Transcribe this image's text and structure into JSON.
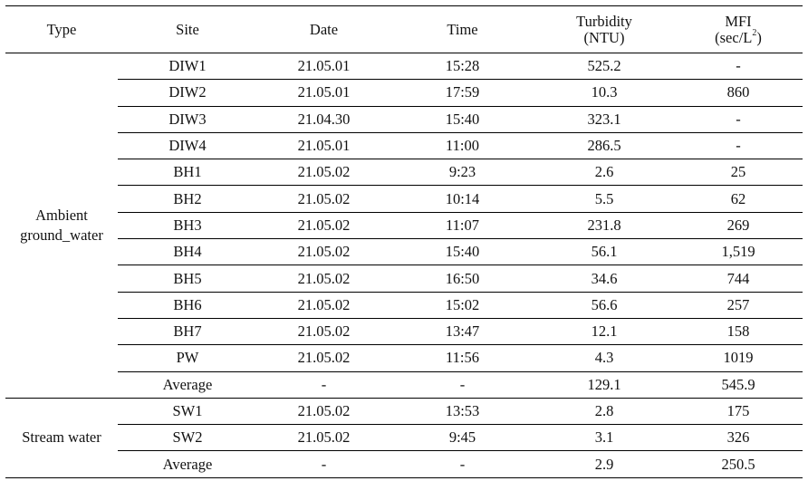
{
  "table": {
    "headers": {
      "type": "Type",
      "site": "Site",
      "date": "Date",
      "time": "Time",
      "turbidity_line1": "Turbidity",
      "turbidity_line2": "(NTU)",
      "mfi_line1": "MFI",
      "mfi_line2_pre": "(sec/L",
      "mfi_line2_sup": "2",
      "mfi_line2_post": ")"
    },
    "groups": [
      {
        "type_line1": "Ambient",
        "type_line2": "ground_water",
        "rows": [
          {
            "site": "DIW1",
            "date": "21.05.01",
            "time": "15:28",
            "turbidity": "525.2",
            "mfi": "-"
          },
          {
            "site": "DIW2",
            "date": "21.05.01",
            "time": "17:59",
            "turbidity": "10.3",
            "mfi": "860"
          },
          {
            "site": "DIW3",
            "date": "21.04.30",
            "time": "15:40",
            "turbidity": "323.1",
            "mfi": "-"
          },
          {
            "site": "DIW4",
            "date": "21.05.01",
            "time": "11:00",
            "turbidity": "286.5",
            "mfi": "-"
          },
          {
            "site": "BH1",
            "date": "21.05.02",
            "time": "9:23",
            "turbidity": "2.6",
            "mfi": "25"
          },
          {
            "site": "BH2",
            "date": "21.05.02",
            "time": "10:14",
            "turbidity": "5.5",
            "mfi": "62"
          },
          {
            "site": "BH3",
            "date": "21.05.02",
            "time": "11:07",
            "turbidity": "231.8",
            "mfi": "269"
          },
          {
            "site": "BH4",
            "date": "21.05.02",
            "time": "15:40",
            "turbidity": "56.1",
            "mfi": "1,519"
          },
          {
            "site": "BH5",
            "date": "21.05.02",
            "time": "16:50",
            "turbidity": "34.6",
            "mfi": "744"
          },
          {
            "site": "BH6",
            "date": "21.05.02",
            "time": "15:02",
            "turbidity": "56.6",
            "mfi": "257"
          },
          {
            "site": "BH7",
            "date": "21.05.02",
            "time": "13:47",
            "turbidity": "12.1",
            "mfi": "158"
          },
          {
            "site": "PW",
            "date": "21.05.02",
            "time": "11:56",
            "turbidity": "4.3",
            "mfi": "1019"
          },
          {
            "site": "Average",
            "date": "-",
            "time": "-",
            "turbidity": "129.1",
            "mfi": "545.9"
          }
        ]
      },
      {
        "type_line1": "Stream water",
        "type_line2": "",
        "rows": [
          {
            "site": "SW1",
            "date": "21.05.02",
            "time": "13:53",
            "turbidity": "2.8",
            "mfi": "175"
          },
          {
            "site": "SW2",
            "date": "21.05.02",
            "time": "9:45",
            "turbidity": "3.1",
            "mfi": "326"
          },
          {
            "site": "Average",
            "date": "-",
            "time": "-",
            "turbidity": "2.9",
            "mfi": "250.5"
          }
        ]
      }
    ]
  }
}
